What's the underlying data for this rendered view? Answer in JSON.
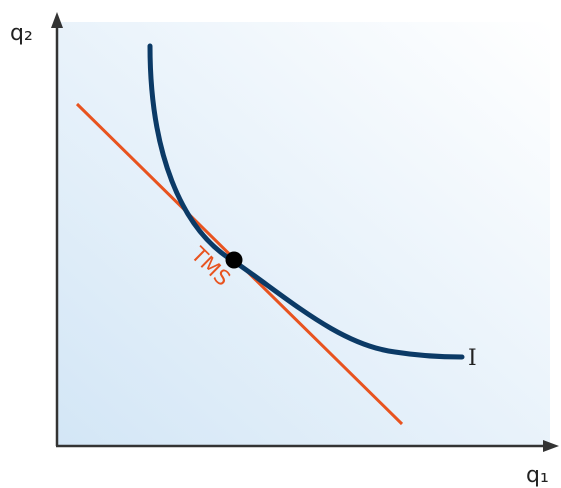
{
  "axes": {
    "x_label": "q₁",
    "y_label": "q₂"
  },
  "curve": {
    "label": "I",
    "color": "#0b3a66"
  },
  "tangent": {
    "label": "TMS",
    "color": "#e8531f"
  },
  "point": {
    "color": "#000000"
  },
  "background": {
    "gradient_from": "#d6e8f7",
    "gradient_to": "#ffffff"
  }
}
